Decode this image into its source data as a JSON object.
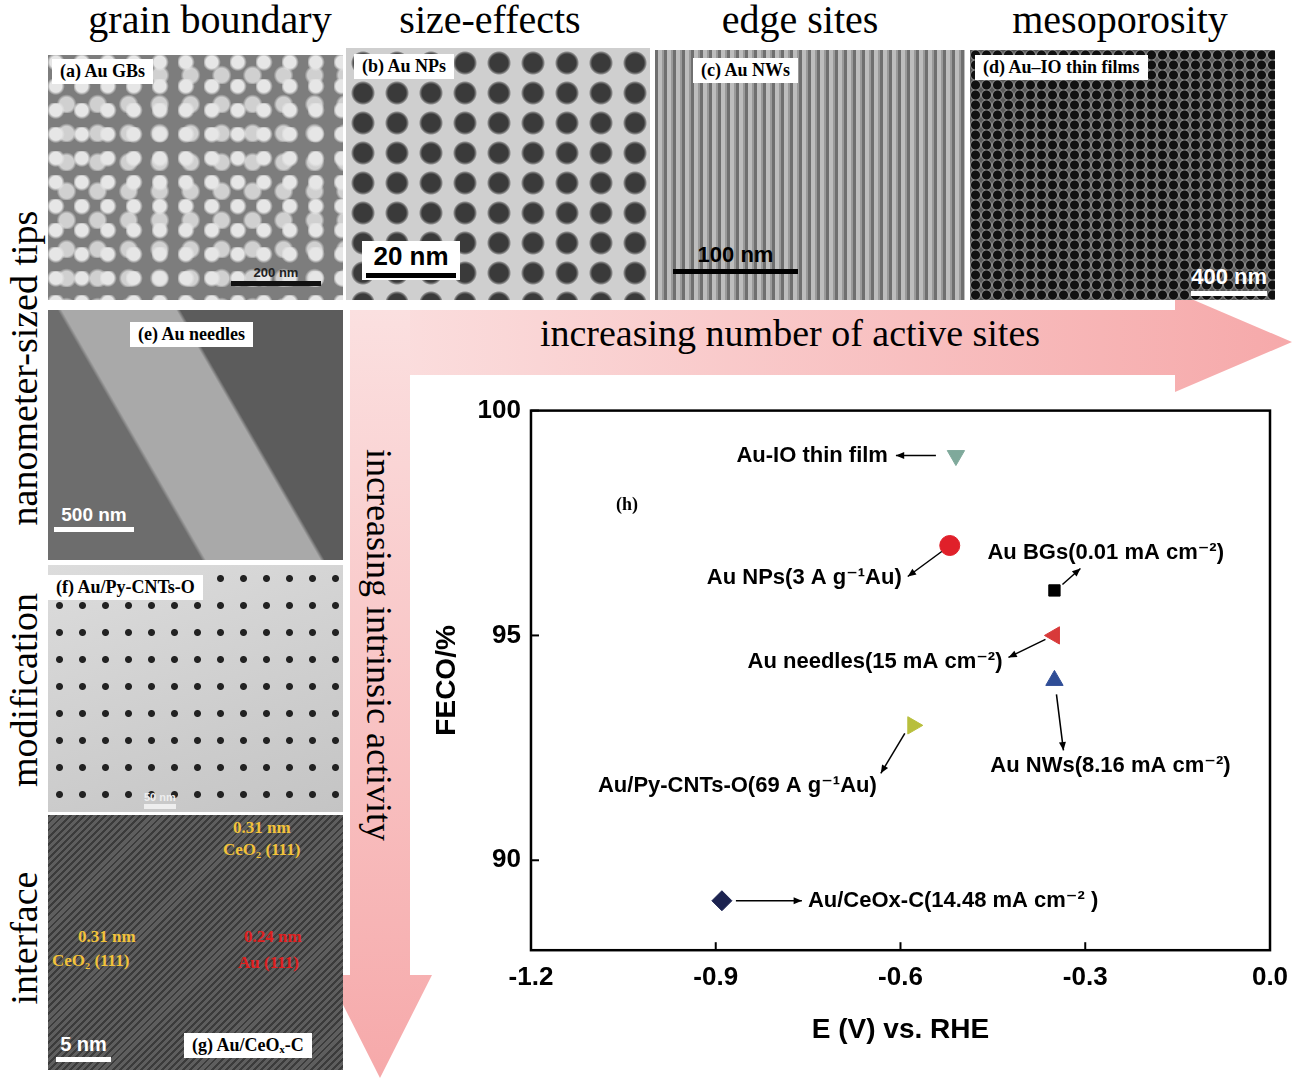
{
  "figure": {
    "column_headings": [
      "grain boundary",
      "size-effects",
      "edge sites",
      "mesoporosity"
    ],
    "row_labels": [
      "nanometer-sized tips",
      "modification",
      "interface"
    ],
    "arrows": {
      "horizontal": "increasing number of active sites",
      "vertical": "increasing intrinsic activity"
    },
    "panels": [
      {
        "label": "(a) Au GBs",
        "scale_bar": "200 nm"
      },
      {
        "label": "(b) Au NPs",
        "scale_bar": "20 nm"
      },
      {
        "label": "(c) Au NWs",
        "scale_bar": "100 nm"
      },
      {
        "label": "(d) Au–IO thin films",
        "scale_bar": "400 nm"
      },
      {
        "label": "(e) Au needles",
        "scale_bar": "500 nm"
      },
      {
        "label": "(f) Au/Py-CNTs-O",
        "scale_bar": "50 nm"
      },
      {
        "label": "(g) Au/CeOₓ-C",
        "scale_bar": "5 nm",
        "annotations": [
          "0.31 nm",
          "CeO₂ (111)",
          "0.31 nm",
          "CeO₂ (111)",
          "0.24 nm",
          "Au (111)"
        ]
      }
    ],
    "chart_panel_label": "(h)"
  },
  "chart_data": {
    "type": "scatter",
    "x_label": "E (V) vs. RHE",
    "y_label": "FECO/%",
    "xlim": [
      -1.2,
      0.0
    ],
    "xticks": [
      -1.2,
      -0.9,
      -0.6,
      -0.3,
      {
        "value": 0,
        "label": "0.0"
      }
    ],
    "ylim": [
      88,
      100
    ],
    "yticks": [
      90,
      95,
      100
    ],
    "grid": false,
    "series": [
      {
        "name": "Au-IO thin film",
        "color": "#7fa99b",
        "marker": "triangle_down",
        "x": [
          -0.51
        ],
        "values": [
          99
        ]
      },
      {
        "name": "Au NPs(3 A g⁻¹Au)",
        "color": "#e0202a",
        "marker": "circle",
        "x": [
          -0.52
        ],
        "values": [
          97
        ]
      },
      {
        "name": "Au BGs(0.01 mA cm⁻²)",
        "color": "#000000",
        "marker": "square",
        "x": [
          -0.35
        ],
        "values": [
          96
        ]
      },
      {
        "name": "Au needles(15 mA cm⁻²)",
        "color": "#d83a3a",
        "marker": "triangle_left",
        "x": [
          -0.35
        ],
        "values": [
          95
        ]
      },
      {
        "name": "Au NWs(8.16 mA cm⁻²)",
        "color": "#2f4d96",
        "marker": "triangle_up",
        "x": [
          -0.35
        ],
        "values": [
          94
        ]
      },
      {
        "name": "Au/Py-CNTs-O(69 A g⁻¹Au)",
        "color": "#b8bf3c",
        "marker": "triangle_right",
        "x": [
          -0.58
        ],
        "values": [
          93
        ]
      },
      {
        "name": "Au/CeOx-C(14.48 mA cm⁻² )",
        "color": "#1c2350",
        "marker": "diamond",
        "x": [
          -0.89
        ],
        "values": [
          89.1
        ]
      }
    ]
  }
}
